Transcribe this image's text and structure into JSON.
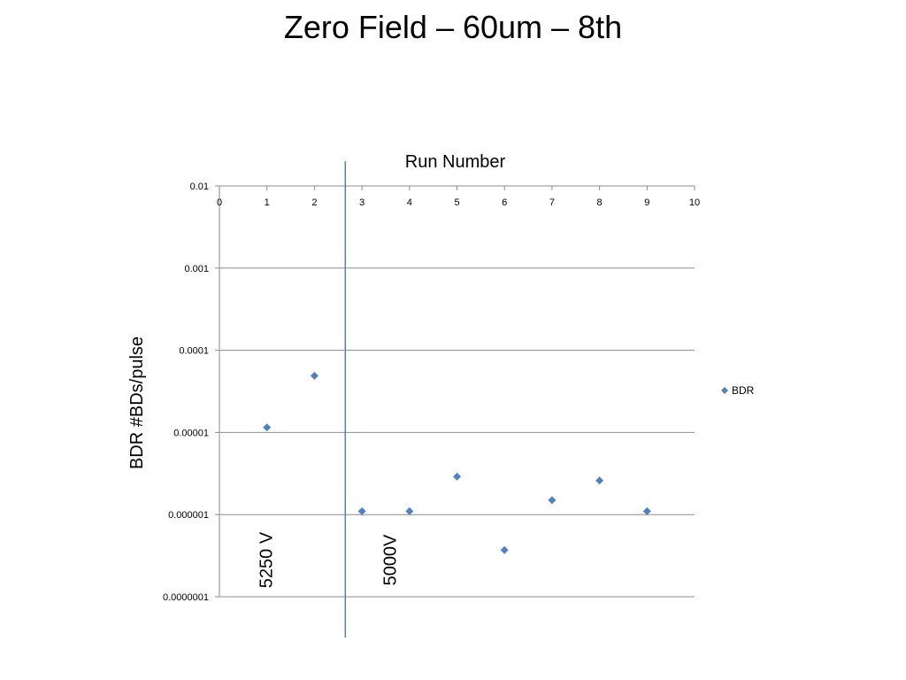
{
  "slide": {
    "title": "Zero Field – 60um – 8th"
  },
  "chart_data": {
    "type": "scatter",
    "title": "",
    "xlabel": "Run Number",
    "ylabel": "BDR #BDs/pulse",
    "x_axis_position": "top",
    "xlim": [
      0,
      10
    ],
    "x_ticks": [
      "0",
      "1",
      "2",
      "3",
      "4",
      "5",
      "6",
      "7",
      "8",
      "9",
      "10"
    ],
    "y_scale": "log",
    "ylim": [
      1e-07,
      0.01
    ],
    "y_ticks": [
      {
        "value": 0.01,
        "label": "0.01"
      },
      {
        "value": 0.001,
        "label": "0.001"
      },
      {
        "value": 0.0001,
        "label": "0.0001"
      },
      {
        "value": 1e-05,
        "label": "0.00001"
      },
      {
        "value": 1e-06,
        "label": "0.000001"
      },
      {
        "value": 1e-07,
        "label": "0.0000001"
      }
    ],
    "grid": {
      "horizontal": true,
      "vertical": false
    },
    "legend_position": "right",
    "series": [
      {
        "name": "BDR",
        "color": "#4F81BD",
        "marker": "diamond",
        "x": [
          1,
          2,
          3,
          4,
          5,
          6,
          7,
          8,
          9
        ],
        "y": [
          1.15e-05,
          4.9e-05,
          1.1e-06,
          1.1e-06,
          2.9e-06,
          3.7e-07,
          1.5e-06,
          2.6e-06,
          1.1e-06
        ]
      }
    ],
    "annotations": [
      {
        "type": "vertical-line",
        "x": 2.65,
        "color": "#4F81BD"
      },
      {
        "type": "text",
        "text": "5250 V",
        "x": 1.0,
        "y": 2.8e-07,
        "rotation": -90
      },
      {
        "type": "text",
        "text": "5000V",
        "x": 3.6,
        "y": 2.8e-07,
        "rotation": -90
      }
    ]
  }
}
